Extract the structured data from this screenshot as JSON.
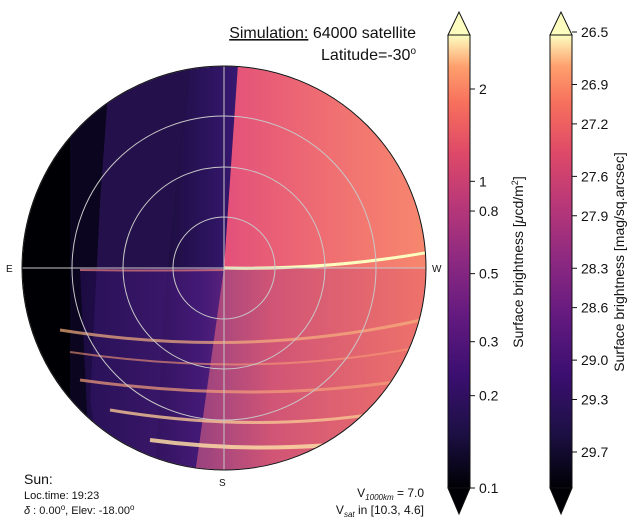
{
  "title": {
    "sim_label": "Simulation:",
    "sim_value": "64000 satellite",
    "latitude_label": "Latitude=-30",
    "latitude_sup": "o"
  },
  "compass": {
    "east": "E",
    "west": "W",
    "south": "S"
  },
  "sun_info": {
    "heading": "Sun:",
    "loc_time": "Loc.time: 19:23",
    "delta_symbol": "δ",
    "delta_text": " : 0.00",
    "delta_sup": "o",
    "elev_text": ", Elev: -18.00",
    "elev_sup": "o"
  },
  "velocity_info": {
    "v1000_base": "V",
    "v1000_sub": "1000km",
    "v1000_rest": " = 7.0",
    "vsat_base": "V",
    "vsat_sub": "sat",
    "vsat_rest": " in [10.3, 4.6]"
  },
  "colors": {
    "dark_edge": "#000004",
    "purple": "#3b0f70",
    "violet": "#5c2a8a",
    "magenta": "#8c2981",
    "rose": "#de4968",
    "salmon": "#f06a5c",
    "peach": "#fe9f6d",
    "cream": "#fcfdbf",
    "grid": "#c8c8c8"
  },
  "chart_data": [
    {
      "type": "heatmap",
      "description_title": "",
      "projection": "polar sky map",
      "grid_rings": 4,
      "cardinal_labels": [
        "E",
        "W",
        "S"
      ]
    },
    {
      "type": "colorbar",
      "label": "Surface brightness [μcd/m²]",
      "label_base": "Surface brightness [",
      "label_mu": "μ",
      "label_unit": "cd/m",
      "label_sup": "2",
      "label_end": "]",
      "scale": "log",
      "range": [
        0.1,
        3.0
      ],
      "ticks": [
        0.1,
        0.2,
        0.3,
        0.5,
        0.8,
        1,
        2
      ],
      "tick_labels": [
        "0.1",
        "0.2",
        "0.3",
        "0.5",
        "0.8",
        "1",
        "2"
      ]
    },
    {
      "type": "colorbar",
      "label": "Surface brightness [mag/sq.arcsec]",
      "ticks": [
        26.5,
        26.9,
        27.2,
        27.6,
        27.9,
        28.3,
        28.6,
        29.0,
        29.3,
        29.7
      ],
      "tick_labels": [
        "26.5",
        "26.9",
        "27.2",
        "27.6",
        "27.9",
        "28.3",
        "28.6",
        "29.0",
        "29.3",
        "29.7"
      ],
      "range": [
        26.4,
        30.0
      ]
    }
  ]
}
